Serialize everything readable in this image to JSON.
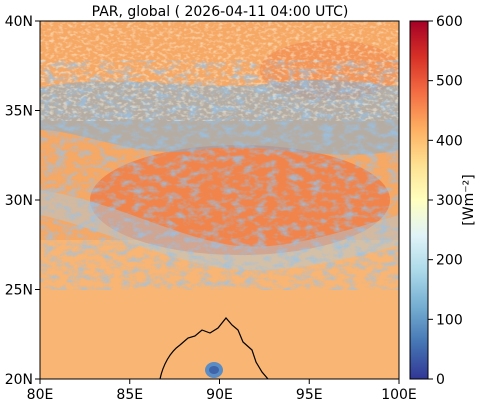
{
  "title": "PAR, global ( 2026-04-11 04:00 UTC)",
  "map": {
    "lon_range": [
      80,
      100
    ],
    "lat_range": [
      20,
      40
    ],
    "lon_ticks": [
      {
        "value": 80,
        "label": "80E"
      },
      {
        "value": 85,
        "label": "85E"
      },
      {
        "value": 90,
        "label": "90E"
      },
      {
        "value": 95,
        "label": "95E"
      },
      {
        "value": 100,
        "label": "100E"
      }
    ],
    "lat_ticks": [
      {
        "value": 20,
        "label": "20N"
      },
      {
        "value": 25,
        "label": "25N"
      },
      {
        "value": 30,
        "label": "30N"
      },
      {
        "value": 35,
        "label": "35N"
      },
      {
        "value": 40,
        "label": "40N"
      }
    ],
    "colormap": "RdYlBu_r"
  },
  "colorbar": {
    "label": "[Wm⁻²]",
    "min": 0,
    "max": 600,
    "ticks": [
      {
        "value": 0,
        "label": "0"
      },
      {
        "value": 100,
        "label": "100"
      },
      {
        "value": 200,
        "label": "200"
      },
      {
        "value": 300,
        "label": "300"
      },
      {
        "value": 400,
        "label": "400"
      },
      {
        "value": 500,
        "label": "500"
      },
      {
        "value": 600,
        "label": "600"
      }
    ],
    "colors": [
      "#313695",
      "#4575b4",
      "#74add1",
      "#abd9e9",
      "#e0f3f8",
      "#ffffbf",
      "#fee090",
      "#fdae61",
      "#f46d43",
      "#d73027",
      "#a50026"
    ]
  }
}
